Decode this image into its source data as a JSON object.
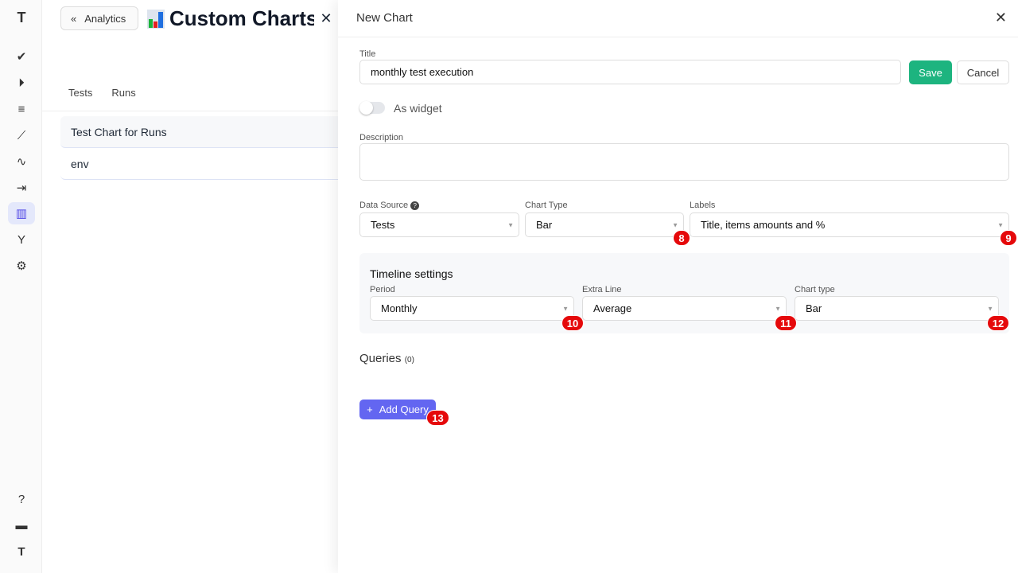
{
  "sidebar": {
    "items": [
      {
        "icon": "logo-icon",
        "glyph": "T"
      },
      {
        "icon": "check-icon",
        "glyph": "✔"
      },
      {
        "icon": "play-circle-icon",
        "glyph": "⏵"
      },
      {
        "icon": "checklist-icon",
        "glyph": "≡"
      },
      {
        "icon": "steps-icon",
        "glyph": "⟋"
      },
      {
        "icon": "pulse-icon",
        "glyph": "∿"
      },
      {
        "icon": "import-icon",
        "glyph": "⇥"
      },
      {
        "icon": "analytics-icon",
        "glyph": "▥",
        "active": true
      },
      {
        "icon": "branch-icon",
        "glyph": "Y"
      },
      {
        "icon": "gear-icon",
        "glyph": "⚙"
      }
    ],
    "bottom": [
      {
        "icon": "help-icon",
        "glyph": "?"
      },
      {
        "icon": "folder-icon",
        "glyph": "▬"
      },
      {
        "icon": "avatar-icon",
        "glyph": "T"
      }
    ]
  },
  "background": {
    "back_label": "Analytics",
    "title": "Custom Charts",
    "tabs": [
      "Tests",
      "Runs"
    ],
    "rows": [
      "Test Chart for Runs",
      "env"
    ]
  },
  "drawer": {
    "title": "New Chart",
    "title_label": "Title",
    "title_value": "monthly test execution",
    "save": "Save",
    "cancel": "Cancel",
    "widget_label": "As widget",
    "widget_on": false,
    "description_label": "Description",
    "description_value": "",
    "data_source_label": "Data Source",
    "data_source": "Tests",
    "chart_type_label": "Chart Type",
    "chart_type": "Bar",
    "labels_label": "Labels",
    "labels": "Title, items amounts and %",
    "timeline": {
      "title": "Timeline settings",
      "period_label": "Period",
      "period": "Monthly",
      "extra_label": "Extra Line",
      "extra": "Average",
      "chart_type_label": "Chart type",
      "chart_type": "Bar"
    },
    "queries_label": "Queries",
    "queries_count": "(0)",
    "add_query": "Add Query"
  },
  "badges": [
    "8",
    "9",
    "10",
    "11",
    "12",
    "13"
  ],
  "colors": {
    "save": "#1db47f",
    "add_query": "#6366f1",
    "badge": "#e5090b",
    "active_nav": "#e4e8fb"
  }
}
